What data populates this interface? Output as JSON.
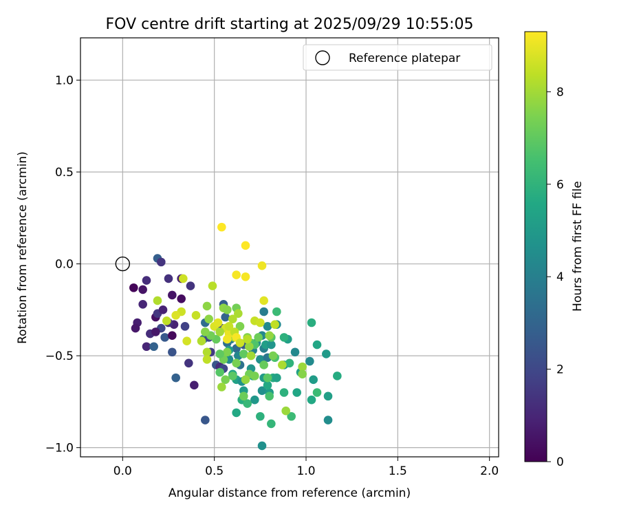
{
  "chart_data": {
    "type": "scatter",
    "title": "FOV centre drift starting at 2025/09/29 10:55:05",
    "xlabel": "Angular distance from reference (arcmin)",
    "ylabel": "Rotation from reference (arcmin)",
    "xlim": [
      -0.23,
      2.05
    ],
    "ylim": [
      -1.05,
      1.23
    ],
    "xticks": [
      0.0,
      0.5,
      1.0,
      1.5,
      2.0
    ],
    "xtick_labels": [
      "0.0",
      "0.5",
      "1.0",
      "1.5",
      "2.0"
    ],
    "yticks": [
      1.0,
      0.5,
      0.0,
      -0.5,
      -1.0
    ],
    "ytick_labels": [
      "1.0",
      "0.5",
      "0.0",
      "−0.5",
      "−1.0"
    ],
    "grid": true,
    "legend": {
      "location": "top-right",
      "entries": [
        "Reference platepar"
      ]
    },
    "reference_point": {
      "x": 0.0,
      "y": 0.0
    },
    "colorbar": {
      "label": "Hours from first FF file",
      "range": [
        0,
        9.3
      ],
      "ticks": [
        0,
        2,
        4,
        6,
        8
      ],
      "tick_labels": [
        "0",
        "2",
        "4",
        "6",
        "8"
      ],
      "colormap": [
        "#440154",
        "#482475",
        "#414487",
        "#355f8d",
        "#2a788e",
        "#21918c",
        "#22a884",
        "#44bf70",
        "#7ad151",
        "#bddf26",
        "#fde725"
      ]
    },
    "points": [
      [
        0.06,
        -0.13,
        0.1
      ],
      [
        0.11,
        -0.14,
        0.5
      ],
      [
        0.13,
        -0.09,
        1.2
      ],
      [
        0.11,
        -0.22,
        1.0
      ],
      [
        0.08,
        -0.32,
        0.8
      ],
      [
        0.07,
        -0.35,
        0.6
      ],
      [
        0.13,
        -0.45,
        1.0
      ],
      [
        0.15,
        -0.38,
        1.2
      ],
      [
        0.18,
        -0.29,
        0.4
      ],
      [
        0.19,
        -0.27,
        1.5
      ],
      [
        0.22,
        -0.25,
        0.9
      ],
      [
        0.21,
        -0.35,
        2.0
      ],
      [
        0.18,
        -0.37,
        0.6
      ],
      [
        0.23,
        -0.4,
        2.6
      ],
      [
        0.17,
        -0.45,
        2.9
      ],
      [
        0.28,
        -0.33,
        0.9
      ],
      [
        0.25,
        -0.32,
        1.3
      ],
      [
        0.27,
        -0.39,
        0.2
      ],
      [
        0.27,
        -0.17,
        0.5
      ],
      [
        0.25,
        -0.08,
        1.3
      ],
      [
        0.19,
        0.03,
        2.8
      ],
      [
        0.21,
        0.01,
        1.4
      ],
      [
        0.32,
        -0.08,
        0.8
      ],
      [
        0.32,
        -0.19,
        0.3
      ],
      [
        0.37,
        -0.12,
        1.4
      ],
      [
        0.34,
        -0.34,
        1.8
      ],
      [
        0.36,
        -0.54,
        1.4
      ],
      [
        0.27,
        -0.48,
        2.4
      ],
      [
        0.29,
        -0.62,
        2.9
      ],
      [
        0.39,
        -0.66,
        0.8
      ],
      [
        0.45,
        -0.85,
        2.5
      ],
      [
        0.45,
        -0.32,
        3.3
      ],
      [
        0.44,
        -0.41,
        3.6
      ],
      [
        0.47,
        -0.4,
        2.0
      ],
      [
        0.48,
        -0.48,
        1.6
      ],
      [
        0.51,
        -0.55,
        2.5
      ],
      [
        0.53,
        -0.56,
        1.2
      ],
      [
        0.55,
        -0.57,
        2.0
      ],
      [
        0.55,
        -0.22,
        2.8
      ],
      [
        0.56,
        -0.29,
        3.0
      ],
      [
        0.54,
        -0.35,
        2.2
      ],
      [
        0.57,
        -0.43,
        3.4
      ],
      [
        0.59,
        -0.41,
        3.9
      ],
      [
        0.6,
        -0.38,
        4.0
      ],
      [
        0.62,
        -0.46,
        3.2
      ],
      [
        0.64,
        -0.55,
        3.5
      ],
      [
        0.66,
        -0.44,
        2.6
      ],
      [
        0.63,
        -0.5,
        4.2
      ],
      [
        0.58,
        -0.52,
        4.5
      ],
      [
        0.58,
        -0.47,
        5.0
      ],
      [
        0.6,
        -0.6,
        5.5
      ],
      [
        0.62,
        -0.63,
        5.3
      ],
      [
        0.65,
        -0.64,
        4.7
      ],
      [
        0.66,
        -0.69,
        5.1
      ],
      [
        0.7,
        -0.57,
        4.8
      ],
      [
        0.71,
        -0.47,
        4.1
      ],
      [
        0.73,
        -0.43,
        4.5
      ],
      [
        0.76,
        -0.39,
        4.3
      ],
      [
        0.77,
        -0.26,
        3.9
      ],
      [
        0.79,
        -0.34,
        4.4
      ],
      [
        0.77,
        -0.46,
        4.0
      ],
      [
        0.75,
        -0.52,
        4.6
      ],
      [
        0.79,
        -0.51,
        3.7
      ],
      [
        0.78,
        -0.44,
        5.2
      ],
      [
        0.81,
        -0.44,
        4.8
      ],
      [
        0.84,
        -0.33,
        4.4
      ],
      [
        0.77,
        -0.62,
        5.0
      ],
      [
        0.76,
        -0.69,
        4.6
      ],
      [
        0.8,
        -0.7,
        5.1
      ],
      [
        0.79,
        -0.66,
        5.6
      ],
      [
        0.72,
        -0.74,
        4.9
      ],
      [
        0.71,
        -0.61,
        5.5
      ],
      [
        0.65,
        -0.74,
        5.8
      ],
      [
        0.62,
        -0.81,
        5.6
      ],
      [
        0.68,
        -0.76,
        6.2
      ],
      [
        0.75,
        -0.83,
        5.9
      ],
      [
        0.81,
        -0.87,
        6.1
      ],
      [
        0.76,
        -0.99,
        4.6
      ],
      [
        0.82,
        -0.62,
        5.7
      ],
      [
        0.84,
        -0.62,
        5.3
      ],
      [
        0.88,
        -0.7,
        5.9
      ],
      [
        0.88,
        -0.55,
        4.8
      ],
      [
        0.92,
        -0.83,
        6.3
      ],
      [
        0.95,
        -0.7,
        5.5
      ],
      [
        0.9,
        -0.41,
        5.2
      ],
      [
        0.88,
        -0.4,
        5.9
      ],
      [
        0.94,
        -0.48,
        4.3
      ],
      [
        0.91,
        -0.54,
        6.0
      ],
      [
        0.97,
        -0.59,
        5.2
      ],
      [
        1.02,
        -0.53,
        4.4
      ],
      [
        1.03,
        -0.32,
        5.8
      ],
      [
        1.04,
        -0.63,
        5.1
      ],
      [
        1.06,
        -0.44,
        5.5
      ],
      [
        1.06,
        -0.7,
        6.3
      ],
      [
        1.03,
        -0.74,
        5.6
      ],
      [
        1.11,
        -0.49,
        5.0
      ],
      [
        1.12,
        -0.72,
        5.2
      ],
      [
        1.12,
        -0.85,
        4.5
      ],
      [
        1.17,
        -0.61,
        5.7
      ],
      [
        0.84,
        -0.26,
        6.3
      ],
      [
        0.81,
        -0.4,
        6.8
      ],
      [
        0.83,
        -0.51,
        6.6
      ],
      [
        0.7,
        -0.43,
        7.0
      ],
      [
        0.72,
        -0.44,
        6.7
      ],
      [
        0.74,
        -0.4,
        7.2
      ],
      [
        0.68,
        -0.4,
        7.6
      ],
      [
        0.66,
        -0.49,
        7.0
      ],
      [
        0.62,
        -0.54,
        7.4
      ],
      [
        0.6,
        -0.61,
        6.9
      ],
      [
        0.55,
        -0.52,
        7.3
      ],
      [
        0.53,
        -0.59,
        6.8
      ],
      [
        0.56,
        -0.63,
        7.4
      ],
      [
        0.54,
        -0.67,
        7.9
      ],
      [
        0.57,
        -0.48,
        7.5
      ],
      [
        0.53,
        -0.49,
        7.0
      ],
      [
        0.51,
        -0.41,
        7.1
      ],
      [
        0.48,
        -0.39,
        7.3
      ],
      [
        0.45,
        -0.37,
        7.6
      ],
      [
        0.46,
        -0.48,
        8.2
      ],
      [
        0.46,
        -0.52,
        8.4
      ],
      [
        0.47,
        -0.3,
        7.7
      ],
      [
        0.46,
        -0.23,
        7.7
      ],
      [
        0.49,
        -0.12,
        8.3
      ],
      [
        0.55,
        -0.24,
        7.7
      ],
      [
        0.57,
        -0.25,
        7.6
      ],
      [
        0.62,
        -0.24,
        7.3
      ],
      [
        0.63,
        -0.27,
        8.1
      ],
      [
        0.64,
        -0.34,
        7.5
      ],
      [
        0.61,
        -0.4,
        7.9
      ],
      [
        0.69,
        -0.45,
        7.8
      ],
      [
        0.72,
        -0.31,
        8.5
      ],
      [
        0.75,
        -0.32,
        8.6
      ],
      [
        0.77,
        -0.2,
        8.9
      ],
      [
        0.8,
        -0.39,
        7.8
      ],
      [
        0.83,
        -0.33,
        8.4
      ],
      [
        0.82,
        -0.5,
        7.4
      ],
      [
        0.98,
        -0.56,
        7.9
      ],
      [
        0.98,
        -0.6,
        7.6
      ],
      [
        0.89,
        -0.8,
        7.9
      ],
      [
        0.87,
        -0.55,
        8.1
      ],
      [
        0.69,
        -0.6,
        7.3
      ],
      [
        0.66,
        -0.72,
        7.2
      ],
      [
        0.67,
        -0.63,
        7.8
      ],
      [
        0.72,
        -0.61,
        7.4
      ],
      [
        0.79,
        -0.62,
        6.9
      ],
      [
        0.77,
        -0.55,
        7.1
      ],
      [
        0.8,
        -0.72,
        6.6
      ],
      [
        0.4,
        -0.28,
        8.5
      ],
      [
        0.43,
        -0.42,
        8.2
      ],
      [
        0.35,
        -0.42,
        8.7
      ],
      [
        0.32,
        -0.26,
        8.6
      ],
      [
        0.29,
        -0.28,
        8.8
      ],
      [
        0.24,
        -0.31,
        8.4
      ],
      [
        0.19,
        -0.2,
        8.2
      ],
      [
        0.33,
        -0.08,
        8.6
      ],
      [
        0.5,
        -0.34,
        8.8
      ],
      [
        0.52,
        -0.32,
        8.9
      ],
      [
        0.56,
        -0.35,
        8.7
      ],
      [
        0.58,
        -0.38,
        9.0
      ],
      [
        0.57,
        -0.41,
        9.1
      ],
      [
        0.61,
        -0.37,
        8.4
      ],
      [
        0.62,
        -0.4,
        9.2
      ],
      [
        0.64,
        -0.43,
        8.6
      ],
      [
        0.68,
        -0.41,
        8.3
      ],
      [
        0.7,
        -0.5,
        8.0
      ],
      [
        0.62,
        -0.06,
        9.2
      ],
      [
        0.67,
        -0.07,
        9.2
      ],
      [
        0.76,
        -0.01,
        9.1
      ],
      [
        0.67,
        0.1,
        9.3
      ],
      [
        0.54,
        0.2,
        9.3
      ],
      [
        0.6,
        -0.3,
        8.2
      ],
      [
        0.53,
        -0.37,
        8.0
      ],
      [
        0.58,
        -0.34,
        8.5
      ]
    ]
  }
}
